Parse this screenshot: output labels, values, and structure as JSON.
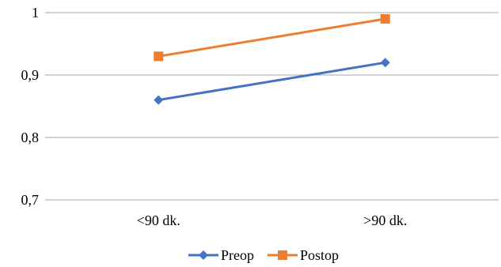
{
  "chart_data": {
    "type": "line",
    "title": "",
    "xlabel": "",
    "ylabel": "",
    "categories": [
      "<90 dk.",
      ">90 dk."
    ],
    "ylim": [
      0.7,
      1.0
    ],
    "yticks": [
      0.7,
      0.8,
      0.9,
      1.0
    ],
    "ytick_labels": [
      "0,7",
      "0,8",
      "0,9",
      "1"
    ],
    "grid": "horizontal",
    "legend_position": "bottom",
    "series": [
      {
        "name": "Preop",
        "values": [
          0.86,
          0.92
        ],
        "color": "#4472C4",
        "marker": "diamond"
      },
      {
        "name": "Postop",
        "values": [
          0.93,
          0.99
        ],
        "color": "#ED7D31",
        "marker": "square"
      }
    ]
  }
}
